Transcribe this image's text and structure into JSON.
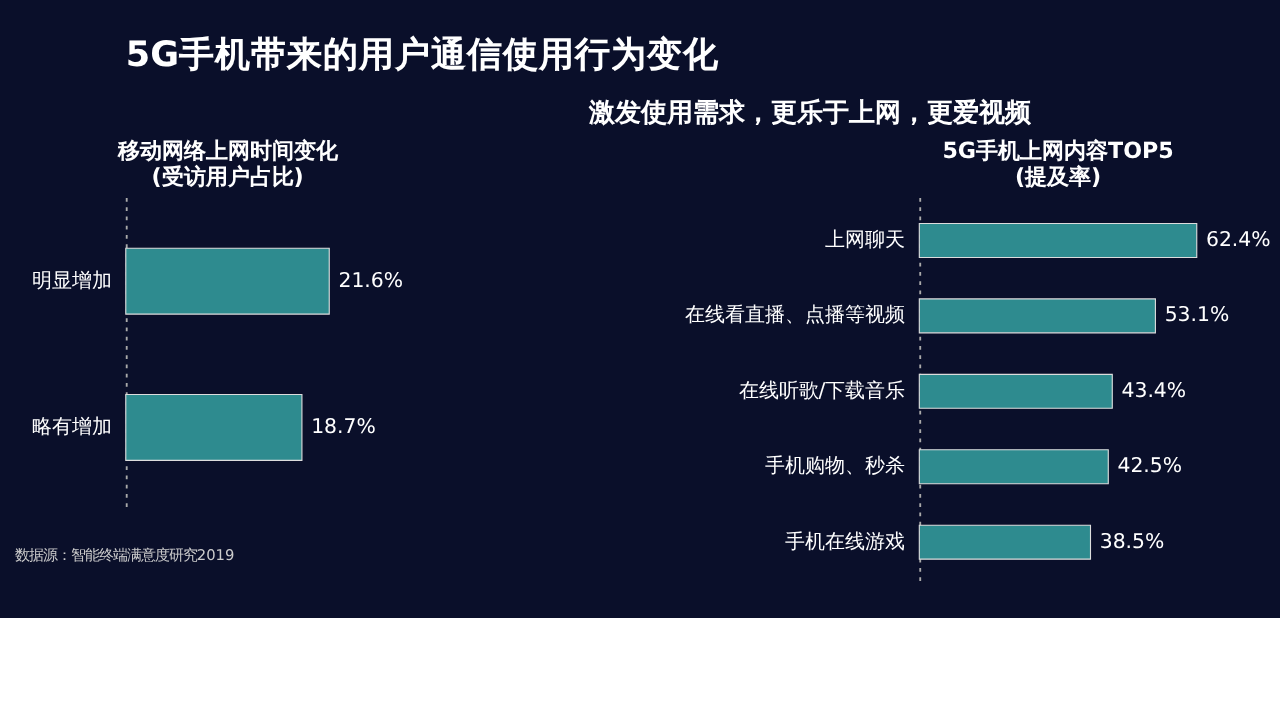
{
  "chart_data": [
    {
      "type": "other",
      "title": "5G手机带来的用户通信使用行为变化",
      "subtitle": "激发使用需求，更乐于上网，更爱视频"
    },
    {
      "type": "bar",
      "orientation": "horizontal",
      "title": "移动网络上网时间变化\n(受访用户占比)",
      "categories": [
        "明显增加",
        "略有增加"
      ],
      "values": [
        21.6,
        18.7
      ],
      "value_labels": [
        "21.6%",
        "18.7%"
      ],
      "color": "#2e8b8f",
      "tick_labels": "y",
      "grid": false,
      "annotations": [
        "数据源：智能终端满意度研究2019"
      ]
    },
    {
      "type": "bar",
      "orientation": "horizontal",
      "title": "5G手机上网内容TOP5\n(提及率)",
      "categories": [
        "上网聊天",
        "在线看直播、点播等视频",
        "在线听歌/下载音乐",
        "手机购物、秒杀",
        "手机在线游戏"
      ],
      "values": [
        62.4,
        53.1,
        43.4,
        42.5,
        38.5
      ],
      "value_labels": [
        "62.4%",
        "53.1%",
        "43.4%",
        "42.5%",
        "38.5%"
      ],
      "color": "#2e8b8f",
      "tick_labels": "y",
      "grid": false
    }
  ]
}
